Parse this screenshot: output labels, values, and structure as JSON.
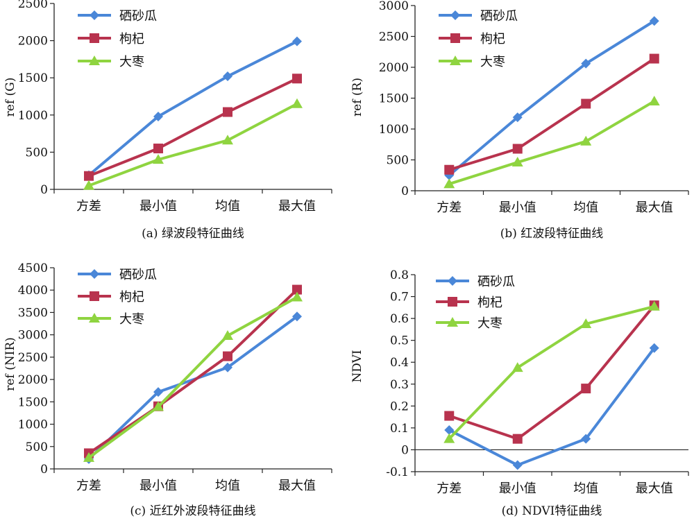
{
  "figure": {
    "legend_position": "top-left",
    "grid": false
  },
  "chart_data": [
    {
      "type": "line",
      "caption": "(a) 绿波段特征曲线",
      "ylabel": "ref (G)",
      "xlabel": "",
      "categories": [
        "方差",
        "最小值",
        "均值",
        "最大值"
      ],
      "ylim": [
        0,
        2500
      ],
      "yticks": [
        0,
        500,
        1000,
        1500,
        2000,
        2500
      ],
      "series": [
        {
          "name": "硒砂瓜",
          "color": "#4a87d8",
          "marker": "diamond",
          "values": [
            190,
            980,
            1520,
            1990
          ]
        },
        {
          "name": "枸杞",
          "color": "#b8334e",
          "marker": "square",
          "values": [
            180,
            550,
            1040,
            1490
          ]
        },
        {
          "name": "大枣",
          "color": "#8fd440",
          "marker": "triangle",
          "values": [
            50,
            400,
            660,
            1150
          ]
        }
      ]
    },
    {
      "type": "line",
      "caption": "(b) 红波段特征曲线",
      "ylabel": "ref (R)",
      "xlabel": "",
      "categories": [
        "方差",
        "最小值",
        "均值",
        "最大值"
      ],
      "ylim": [
        0,
        3000
      ],
      "yticks": [
        0,
        500,
        1000,
        1500,
        2000,
        2500,
        3000
      ],
      "series": [
        {
          "name": "硒砂瓜",
          "color": "#4a87d8",
          "marker": "diamond",
          "values": [
            250,
            1190,
            2060,
            2750
          ]
        },
        {
          "name": "枸杞",
          "color": "#b8334e",
          "marker": "square",
          "values": [
            340,
            680,
            1410,
            2140
          ]
        },
        {
          "name": "大枣",
          "color": "#8fd440",
          "marker": "triangle",
          "values": [
            110,
            460,
            800,
            1450
          ]
        }
      ]
    },
    {
      "type": "line",
      "caption": "(c) 近红外波段特征曲线",
      "ylabel": "ref (NIR)",
      "xlabel": "",
      "categories": [
        "方差",
        "最小值",
        "均值",
        "最大值"
      ],
      "ylim": [
        0,
        4500
      ],
      "yticks": [
        0,
        500,
        1000,
        1500,
        2000,
        2500,
        3000,
        3500,
        4000,
        4500
      ],
      "series": [
        {
          "name": "硒砂瓜",
          "color": "#4a87d8",
          "marker": "diamond",
          "values": [
            220,
            1720,
            2270,
            3410
          ]
        },
        {
          "name": "枸杞",
          "color": "#b8334e",
          "marker": "square",
          "values": [
            350,
            1400,
            2520,
            4010
          ]
        },
        {
          "name": "大枣",
          "color": "#8fd440",
          "marker": "triangle",
          "values": [
            250,
            1390,
            2980,
            3840
          ]
        }
      ]
    },
    {
      "type": "line",
      "caption": "(d) NDVI特征曲线",
      "ylabel": "NDVI",
      "xlabel": "",
      "categories": [
        "方差",
        "最小值",
        "均值",
        "最大值"
      ],
      "ylim": [
        -0.1,
        0.8
      ],
      "yticks": [
        -0.1,
        0,
        0.1,
        0.2,
        0.3,
        0.4,
        0.5,
        0.6,
        0.7,
        0.8
      ],
      "series": [
        {
          "name": "硒砂瓜",
          "color": "#4a87d8",
          "marker": "diamond",
          "values": [
            0.09,
            -0.07,
            0.05,
            0.465
          ]
        },
        {
          "name": "枸杞",
          "color": "#b8334e",
          "marker": "square",
          "values": [
            0.155,
            0.05,
            0.28,
            0.66
          ]
        },
        {
          "name": "大枣",
          "color": "#8fd440",
          "marker": "triangle",
          "values": [
            0.05,
            0.375,
            0.575,
            0.655
          ]
        }
      ]
    }
  ]
}
